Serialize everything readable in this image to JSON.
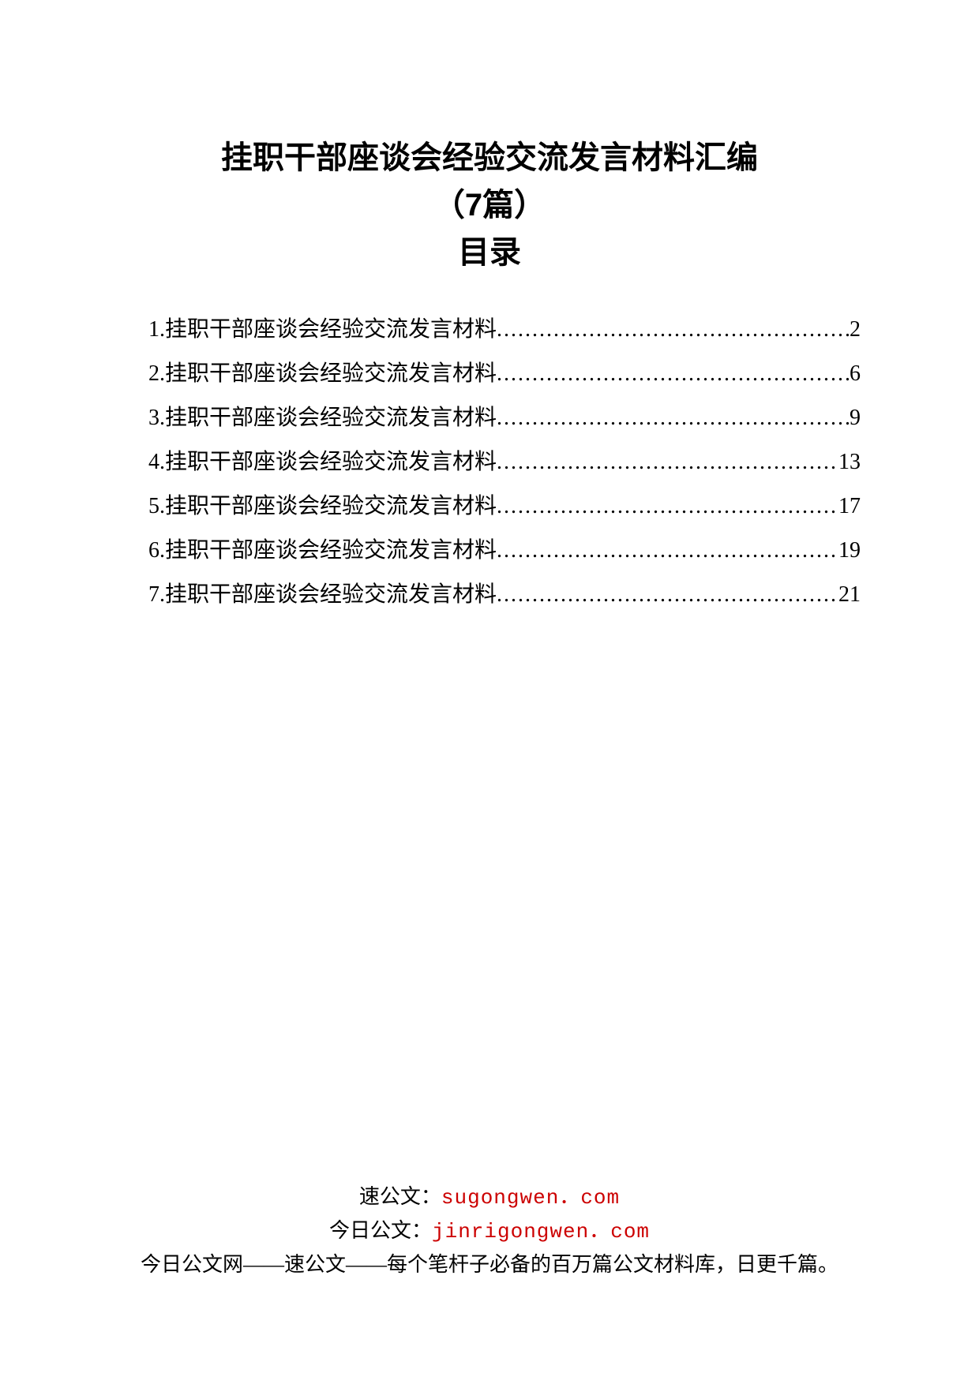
{
  "document": {
    "main_title": "挂职干部座谈会经验交流发言材料汇编",
    "subtitle": "（7篇）",
    "toc_heading": "目录",
    "title_fontsize": 40,
    "title_font": "SimHei",
    "body_fontsize": 28,
    "body_font": "SimSun",
    "text_color": "#000000",
    "url_color": "#cc0000",
    "background_color": "#ffffff"
  },
  "toc": {
    "entries": [
      {
        "num": "1",
        "label": "挂职干部座谈会经验交流发言材料",
        "page": "2"
      },
      {
        "num": "2",
        "label": "挂职干部座谈会经验交流发言材料",
        "page": "6"
      },
      {
        "num": "3",
        "label": "挂职干部座谈会经验交流发言材料",
        "page": "9"
      },
      {
        "num": "4",
        "label": "挂职干部座谈会经验交流发言材料",
        "page": "13"
      },
      {
        "num": "5",
        "label": "挂职干部座谈会经验交流发言材料",
        "page": "17"
      },
      {
        "num": "6",
        "label": "挂职干部座谈会经验交流发言材料",
        "page": "19"
      },
      {
        "num": "7",
        "label": "挂职干部座谈会经验交流发言材料",
        "page": "21"
      }
    ]
  },
  "footer": {
    "line1_label": "速公文：",
    "line1_url": "sugongwen．com",
    "line2_label": "今日公文：",
    "line2_url": "jinrigongwen．com",
    "line3": "今日公文网——速公文——每个笔杆子必备的百万篇公文材料库，日更千篇。"
  }
}
